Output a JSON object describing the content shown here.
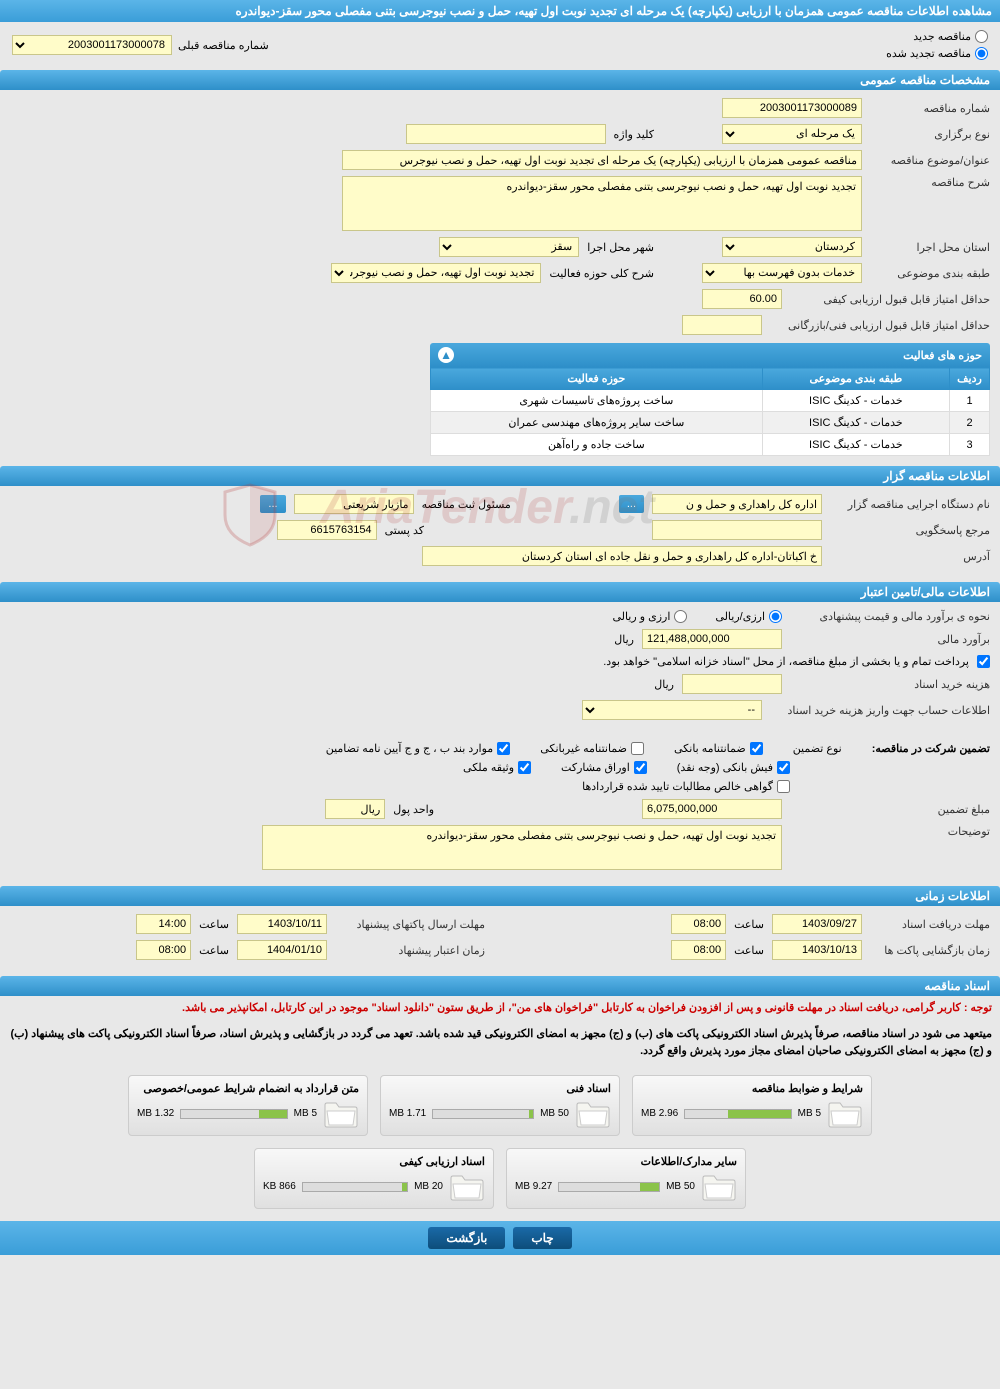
{
  "header": {
    "title": "مشاهده اطلاعات مناقصه عمومی همزمان با ارزیابی (یکپارچه) یک مرحله ای تجدید نوبت اول تهیه، حمل و نصب نیوجرسی بتنی مفصلی محور سقز-دیواندره"
  },
  "radios": {
    "new_label": "مناقصه جدید",
    "renewed_label": "مناقصه تجدید شده",
    "prev_label": "شماره مناقصه قبلی",
    "prev_value": "2003001173000078"
  },
  "sections": {
    "general": {
      "title": "مشخصات مناقصه عمومی",
      "tender_no_label": "شماره مناقصه",
      "tender_no": "2003001173000089",
      "type_label": "نوع برگزاری",
      "type_value": "یک مرحله ای",
      "keyword_label": "کلید واژه",
      "keyword": "",
      "subject_label": "عنوان/موضوع مناقصه",
      "subject": "مناقصه عمومی همزمان با ارزیابی (یکپارچه) یک مرحله ای تجدید نوبت اول تهیه، حمل و نصب نیوجرس",
      "desc_label": "شرح مناقصه",
      "desc": "تجدید نوبت اول تهیه، حمل و نصب نیوجرسی بتنی مفصلی محور سقز-دیواندره",
      "province_label": "استان محل اجرا",
      "province": "کردستان",
      "city_label": "شهر محل اجرا",
      "city": "سقز",
      "class_label": "طبقه بندی موضوعی",
      "class_value": "خدمات بدون فهرست بها",
      "activity_area_label": "شرح کلی حوزه فعالیت",
      "activity_area": "تجدید نوبت اول تهیه، حمل و نصب نیوجرسی بتنی",
      "min_qual_label": "حداقل امتیاز قابل قبول ارزیابی کیفی",
      "min_qual": "60.00",
      "min_tech_label": "حداقل امتیاز قابل قبول ارزیابی فنی/بازرگانی",
      "min_tech": ""
    },
    "activity": {
      "title": "حوزه های فعالیت",
      "cols": [
        "ردیف",
        "طبقه بندی موضوعی",
        "حوزه فعالیت"
      ],
      "rows": [
        [
          "1",
          "خدمات - کدینگ ISIC",
          "ساخت پروژه‌های تاسیسات شهری"
        ],
        [
          "2",
          "خدمات - کدینگ ISIC",
          "ساخت سایر پروژه‌های مهندسی عمران"
        ],
        [
          "3",
          "خدمات - کدینگ ISIC",
          "ساخت جاده و راه‌آهن"
        ]
      ]
    },
    "organizer": {
      "title": "اطلاعات مناقصه گزار",
      "org_label": "نام دستگاه اجرایی مناقصه گزار",
      "org": "اداره کل راهداری و حمل و ن",
      "resp_label": "مسئول ثبت مناقصه",
      "resp": "مازیار شریعتی",
      "ref_label": "مرجع پاسخگویی",
      "postal_label": "کد پستی",
      "postal": "6615763154",
      "address_label": "آدرس",
      "address": "خ اکباتان-اداره کل راهداری و حمل و نقل جاده ای استان کردستان"
    },
    "financial": {
      "title": "اطلاعات مالی/تامین اعتبار",
      "method_label": "نحوه ی برآورد مالی و قیمت پیشنهادی",
      "method_opt1": "ارزی/ریالی",
      "method_opt2": "ارزی و ریالی",
      "estimate_label": "برآورد مالی",
      "estimate": "121,488,000,000",
      "currency": "ریال",
      "note1": "پرداخت تمام و یا بخشی از مبلغ مناقصه، از محل \"اسناد خزانه اسلامی\" خواهد بود.",
      "purchase_cost_label": "هزینه خرید اسناد",
      "purchase_cost": "",
      "account_label": "اطلاعات حساب جهت واریز هزینه خرید اسناد",
      "account_value": "--",
      "guarantee_label": "تضمین شرکت در مناقصه:",
      "guarantee_type_label": "نوع تضمین",
      "g1": "ضمانتنامه بانکی",
      "g2": "ضمانتنامه غیربانکی",
      "g3": "موارد بند ب ، ج و ج آیین نامه تضامین",
      "g4": "فیش بانکی (وجه نقد)",
      "g5": "اوراق مشارکت",
      "g6": "وثیقه ملکی",
      "g7": "گواهی خالص مطالبات تایید شده قراردادها",
      "guarantee_amount_label": "مبلغ تضمین",
      "guarantee_amount": "6,075,000,000",
      "currency_unit_label": "واحد پول",
      "currency_unit": "ریال",
      "explain_label": "توضیحات",
      "explain": "تجدید نوبت اول تهیه، حمل و نصب نیوجرسی بتنی مفصلی محور سقز-دیواندره"
    },
    "schedule": {
      "title": "اطلاعات زمانی",
      "receive_label": "مهلت دریافت اسناد",
      "receive_date": "1403/09/27",
      "receive_time": "08:00",
      "send_label": "مهلت ارسال پاکتهای پیشنهاد",
      "send_date": "1403/10/11",
      "send_time": "14:00",
      "open_label": "زمان بازگشایی پاکت ها",
      "open_date": "1403/10/13",
      "open_time": "08:00",
      "validity_label": "زمان اعتبار پیشنهاد",
      "validity_date": "1404/01/10",
      "validity_time": "08:00",
      "time_label": "ساعت"
    },
    "documents": {
      "title": "اسناد مناقصه",
      "notice1": "توجه : کاربر گرامی، دریافت اسناد در مهلت قانونی و پس از افزودن فراخوان به کارتابل \"فراخوان های من\"، از طریق ستون \"دانلود اسناد\" موجود در این کارتابل، امکانپذیر می باشد.",
      "notice2": "میتعهد می شود در اسناد مناقصه، صرفاً پذیرش اسناد الکترونیکی پاکت های (ب) و (ج) مجهز به امضای الکترونیکی قید شده باشد. تعهد می گردد در بازگشایی و پذیرش اسناد، صرفاً اسناد الکترونیکی پاکت های پیشنهاد (ب) و (ج) مجهز به امضای الکترونیکی صاحبان امضای مجاز مورد پذیرش واقع گردد.",
      "docs": [
        {
          "title": "شرایط و ضوابط مناقصه",
          "used": "2.96 MB",
          "total": "5 MB",
          "pct": 59
        },
        {
          "title": "اسناد فنی",
          "used": "1.71 MB",
          "total": "50 MB",
          "pct": 4
        },
        {
          "title": "متن قرارداد به انضمام شرایط عمومی/خصوصی",
          "used": "1.32 MB",
          "total": "5 MB",
          "pct": 26
        },
        {
          "title": "سایر مدارک/اطلاعات",
          "used": "9.27 MB",
          "total": "50 MB",
          "pct": 19
        },
        {
          "title": "اسناد ارزیابی کیفی",
          "used": "866 KB",
          "total": "20 MB",
          "pct": 5
        }
      ]
    }
  },
  "footer": {
    "print": "چاب",
    "back": "بازگشت"
  },
  "colors": {
    "header_bg": "#3a9dd8",
    "yellow": "#fffcc9",
    "section_bg": "#e8e8e8"
  }
}
